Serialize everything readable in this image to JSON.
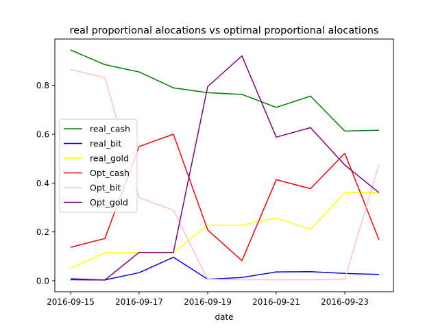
{
  "chart_data": {
    "type": "line",
    "title": "real proportional alocations vs optimal proportional alocations",
    "xlabel": "date",
    "ylabel": "",
    "x": [
      "2016-09-15",
      "2016-09-16",
      "2016-09-17",
      "2016-09-18",
      "2016-09-19",
      "2016-09-20",
      "2016-09-21",
      "2016-09-22",
      "2016-09-23",
      "2016-09-24"
    ],
    "x_ticks": [
      "2016-09-15",
      "2016-09-17",
      "2016-09-19",
      "2016-09-21",
      "2016-09-23"
    ],
    "y_ticks": [
      0.0,
      0.2,
      0.4,
      0.6,
      0.8
    ],
    "y_tick_labels": [
      "0.0",
      "0.2",
      "0.4",
      "0.6",
      "0.8"
    ],
    "ylim": [
      -0.045,
      0.99
    ],
    "grid": false,
    "legend_position": "center-left",
    "series": [
      {
        "name": "real_cash",
        "color": "#008000",
        "values": [
          0.945,
          0.885,
          0.855,
          0.79,
          0.77,
          0.763,
          0.71,
          0.756,
          0.613,
          0.616
        ]
      },
      {
        "name": "real_bit",
        "color": "#0000ff",
        "values": [
          0.008,
          0.003,
          0.033,
          0.096,
          0.006,
          0.013,
          0.036,
          0.037,
          0.03,
          0.026
        ]
      },
      {
        "name": "real_gold",
        "color": "#ffff00",
        "values": [
          0.05,
          0.115,
          0.115,
          0.115,
          0.228,
          0.228,
          0.257,
          0.21,
          0.361,
          0.361
        ]
      },
      {
        "name": "Opt_cash",
        "color": "#ff0000",
        "values": [
          0.137,
          0.173,
          0.55,
          0.6,
          0.208,
          0.082,
          0.414,
          0.377,
          0.522,
          0.167
        ]
      },
      {
        "name": "Opt_bit",
        "color": "#ffc0cb",
        "values": [
          0.865,
          0.832,
          0.34,
          0.289,
          0.006,
          0.005,
          0.004,
          0.004,
          0.006,
          0.478
        ]
      },
      {
        "name": "Opt_gold",
        "color": "#800080",
        "values": [
          0.004,
          0.003,
          0.116,
          0.116,
          0.795,
          0.921,
          0.588,
          0.627,
          0.474,
          0.361
        ]
      }
    ]
  }
}
